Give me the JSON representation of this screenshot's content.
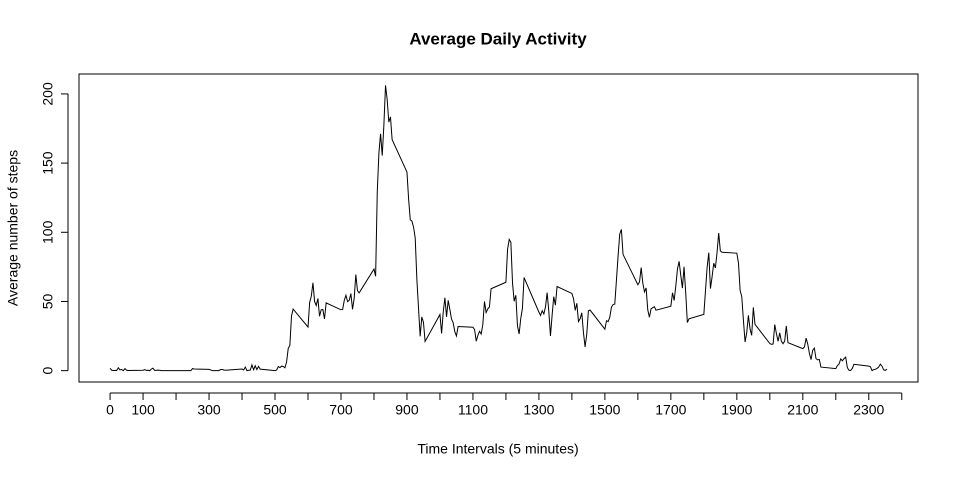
{
  "chart_data": {
    "type": "line",
    "title": "Average Daily Activity",
    "x_label": "Time Intervals (5 minutes)",
    "y_label": "Average number of steps",
    "color": "#000000",
    "xlim": [
      -94.2,
      2449.2
    ],
    "ylim": [
      -8.2,
      214.4
    ],
    "xticks": [
      0,
      100,
      300,
      500,
      700,
      900,
      1100,
      1300,
      1500,
      1700,
      1900,
      2100,
      2300
    ],
    "xticks_unlabeled": [
      200,
      400,
      600,
      800,
      1000,
      1200,
      1400,
      1600,
      1800,
      2000,
      2200,
      2400
    ],
    "yticks": [
      0,
      50,
      100,
      150,
      200
    ],
    "x": [
      0,
      5,
      10,
      15,
      20,
      25,
      30,
      35,
      40,
      45,
      50,
      55,
      100,
      105,
      110,
      115,
      120,
      125,
      130,
      135,
      140,
      145,
      150,
      155,
      200,
      205,
      210,
      215,
      220,
      225,
      230,
      235,
      240,
      245,
      250,
      255,
      300,
      305,
      310,
      315,
      320,
      325,
      330,
      335,
      340,
      345,
      350,
      355,
      400,
      405,
      410,
      415,
      420,
      425,
      430,
      435,
      440,
      445,
      450,
      455,
      500,
      505,
      510,
      515,
      520,
      525,
      530,
      535,
      540,
      545,
      550,
      555,
      600,
      605,
      610,
      615,
      620,
      625,
      630,
      635,
      640,
      645,
      650,
      655,
      700,
      705,
      710,
      715,
      720,
      725,
      730,
      735,
      740,
      745,
      750,
      755,
      800,
      805,
      810,
      815,
      820,
      825,
      830,
      835,
      840,
      845,
      850,
      855,
      900,
      905,
      910,
      915,
      920,
      925,
      930,
      935,
      940,
      945,
      950,
      955,
      1000,
      1005,
      1010,
      1015,
      1020,
      1025,
      1030,
      1035,
      1040,
      1045,
      1050,
      1055,
      1100,
      1105,
      1110,
      1115,
      1120,
      1125,
      1130,
      1135,
      1140,
      1145,
      1150,
      1155,
      1200,
      1205,
      1210,
      1215,
      1220,
      1225,
      1230,
      1235,
      1240,
      1245,
      1250,
      1255,
      1300,
      1305,
      1310,
      1315,
      1320,
      1325,
      1330,
      1335,
      1340,
      1345,
      1350,
      1355,
      1400,
      1405,
      1410,
      1415,
      1420,
      1425,
      1430,
      1435,
      1440,
      1445,
      1450,
      1455,
      1500,
      1505,
      1510,
      1515,
      1520,
      1525,
      1530,
      1535,
      1540,
      1545,
      1550,
      1555,
      1600,
      1605,
      1610,
      1615,
      1620,
      1625,
      1630,
      1635,
      1640,
      1645,
      1650,
      1655,
      1700,
      1705,
      1710,
      1715,
      1720,
      1725,
      1730,
      1735,
      1740,
      1745,
      1750,
      1755,
      1800,
      1805,
      1810,
      1815,
      1820,
      1825,
      1830,
      1835,
      1840,
      1845,
      1850,
      1855,
      1900,
      1905,
      1910,
      1915,
      1920,
      1925,
      1930,
      1935,
      1940,
      1945,
      1950,
      1955,
      2000,
      2005,
      2010,
      2015,
      2020,
      2025,
      2030,
      2035,
      2040,
      2045,
      2050,
      2055,
      2100,
      2105,
      2110,
      2115,
      2120,
      2125,
      2130,
      2135,
      2140,
      2145,
      2150,
      2155,
      2200,
      2205,
      2210,
      2215,
      2220,
      2225,
      2230,
      2235,
      2240,
      2245,
      2250,
      2255,
      2300,
      2305,
      2310,
      2315,
      2320,
      2325,
      2330,
      2335,
      2340,
      2345,
      2350,
      2355
    ],
    "values": [
      1.7,
      0.3,
      0.1,
      0.2,
      0.1,
      2.1,
      0.5,
      0.9,
      0,
      1.5,
      0.3,
      0.1,
      0.3,
      0.7,
      0.2,
      0.3,
      0,
      1.1,
      1.8,
      0.2,
      0.2,
      0.4,
      0.3,
      0,
      0,
      0,
      0,
      0,
      0,
      0,
      0,
      0,
      0,
      0,
      1.5,
      1.2,
      0.9,
      0.5,
      0,
      0,
      0,
      0,
      0,
      0.8,
      0.8,
      0.5,
      0.3,
      0.4,
      1.2,
      0.5,
      2.6,
      0,
      0.3,
      0.4,
      4.1,
      0.7,
      3.5,
      0.8,
      3.1,
      1.1,
      0,
      0.5,
      3.0,
      2.2,
      3.3,
      3.0,
      2.1,
      6.1,
      16,
      18.3,
      39.5,
      44.5,
      31.5,
      49.3,
      53.8,
      63.5,
      50,
      47.1,
      52.2,
      39.3,
      44,
      44.2,
      37.4,
      49,
      44,
      44.2,
      50.8,
      54.5,
      49.9,
      50.9,
      55.7,
      44.3,
      52.3,
      69.5,
      57.8,
      56.2,
      73.4,
      68.2,
      129.4,
      157.5,
      171.2,
      155.4,
      177.3,
      206.2,
      195.9,
      179.6,
      183.4,
      167,
      143.5,
      124,
      109.1,
      108.1,
      103.7,
      95.9,
      66.2,
      45.2,
      24.8,
      38.8,
      35,
      21.1,
      40.6,
      26.9,
      42.4,
      52.7,
      38.9,
      50.8,
      44.3,
      37.4,
      34.7,
      28.3,
      25.1,
      31.9,
      31.4,
      29.7,
      21.3,
      25.5,
      28.4,
      26.5,
      33.4,
      50,
      42,
      44.6,
      46,
      59.2,
      63.9,
      87.7,
      94.8,
      92.8,
      63.4,
      50.2,
      54.5,
      32.4,
      26.5,
      37.7,
      45,
      67.3,
      42.3,
      39.9,
      43.3,
      41,
      46.2,
      56.4,
      42.8,
      25.1,
      40,
      53.5,
      47.3,
      60.8,
      55.8,
      52,
      43.6,
      48.7,
      35.5,
      37.5,
      41.8,
      27.5,
      17.1,
      26.2,
      43.2,
      43.8,
      30,
      36.1,
      35.5,
      38.8,
      46,
      47.8,
      48.1,
      65.3,
      82.9,
      98.7,
      102.1,
      84,
      62.1,
      64.1,
      74.5,
      63.2,
      56.9,
      59.8,
      43.9,
      38.6,
      44.7,
      45.5,
      46.2,
      43.7,
      46.6,
      56.3,
      50.7,
      61.2,
      73.4,
      79,
      68.9,
      59.7,
      75.1,
      56.5,
      34.8,
      37.5,
      40.7,
      58,
      74.7,
      85.3,
      59.3,
      67.8,
      77.7,
      74.2,
      85.3,
      99.5,
      86.6,
      85.6,
      84.9,
      77.8,
      58,
      53.4,
      36.3,
      20.7,
      27.4,
      40,
      30.2,
      25.5,
      45.7,
      33.5,
      19.6,
      19,
      19.3,
      33.3,
      26.8,
      21.2,
      27.3,
      21.3,
      19.5,
      21.3,
      32.3,
      20.2,
      15.9,
      17.2,
      23.5,
      19.2,
      12.5,
      8,
      14.7,
      16.3,
      8.7,
      7.8,
      8.1,
      2.6,
      1.5,
      3.7,
      4.8,
      8.5,
      7.1,
      8.7,
      9.8,
      2.2,
      0.3,
      0.1,
      1.6,
      4.6,
      3.3,
      2.8,
      0,
      0.8,
      1,
      1.6,
      2.6,
      4.7,
      3.3,
      0.6,
      0.2,
      1.1
    ]
  }
}
